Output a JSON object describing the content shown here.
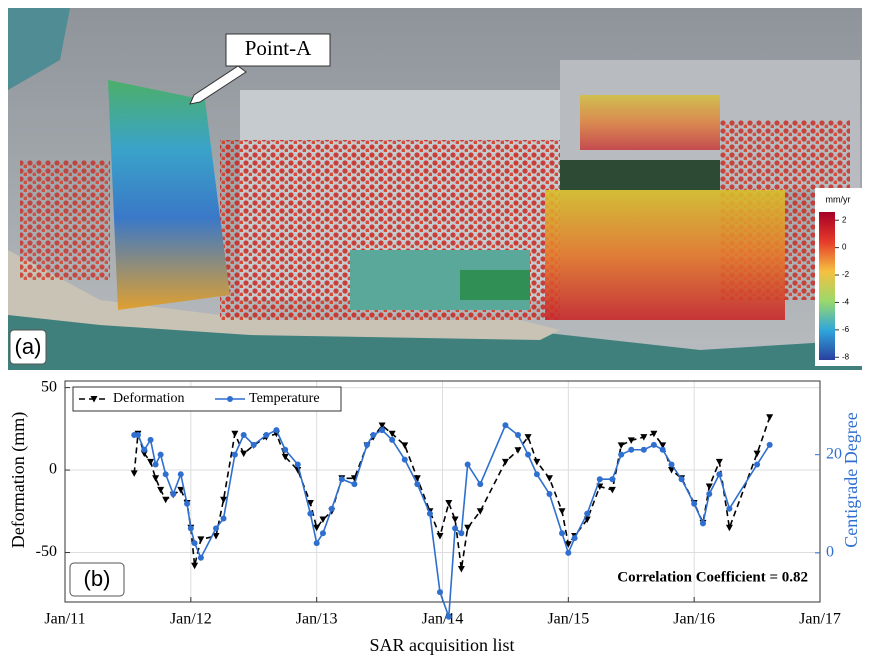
{
  "photo": {
    "pointer": "Point-A",
    "panel": "(a)",
    "colorbar": {
      "label": "mm/yr",
      "ticks": [
        2,
        0,
        -2,
        -4,
        -6,
        -8
      ],
      "lim": [
        2.6,
        -8.2
      ]
    }
  },
  "chart_data": {
    "type": "line",
    "panel": "(b)",
    "xlabel": "SAR acquisition list",
    "ylabel": "Deformation (mm)",
    "y2label": "Centigrade Degree",
    "annotation": "Correlation Coefficient = 0.82",
    "x": [
      2011.55,
      2011.58,
      2011.63,
      2011.68,
      2011.72,
      2011.76,
      2011.8,
      2011.86,
      2011.92,
      2011.97,
      2012.0,
      2012.03,
      2012.08,
      2012.2,
      2012.26,
      2012.35,
      2012.42,
      2012.5,
      2012.6,
      2012.68,
      2012.75,
      2012.85,
      2012.95,
      2013.0,
      2013.05,
      2013.12,
      2013.2,
      2013.3,
      2013.4,
      2013.45,
      2013.52,
      2013.6,
      2013.7,
      2013.8,
      2013.9,
      2013.98,
      2014.05,
      2014.1,
      2014.15,
      2014.2,
      2014.3,
      2014.5,
      2014.6,
      2014.68,
      2014.75,
      2014.85,
      2014.95,
      2015.0,
      2015.05,
      2015.15,
      2015.25,
      2015.35,
      2015.42,
      2015.5,
      2015.6,
      2015.68,
      2015.75,
      2015.82,
      2015.9,
      2016.0,
      2016.07,
      2016.12,
      2016.2,
      2016.28,
      2016.5,
      2016.6
    ],
    "series": [
      {
        "name": "Deformation",
        "color": "#000000",
        "values": [
          -2,
          22,
          10,
          5,
          -5,
          -12,
          -18,
          -15,
          -12,
          -20,
          -35,
          -58,
          -42,
          -40,
          -18,
          22,
          10,
          15,
          20,
          22,
          8,
          0,
          -20,
          -35,
          -30,
          -25,
          -5,
          -5,
          15,
          20,
          27,
          22,
          15,
          -5,
          -25,
          -40,
          -20,
          -30,
          -60,
          -35,
          -25,
          5,
          12,
          20,
          5,
          -5,
          -25,
          -45,
          -40,
          -30,
          -10,
          -12,
          15,
          18,
          20,
          22,
          15,
          0,
          -5,
          -20,
          -32,
          -10,
          5,
          -35,
          10,
          32
        ]
      },
      {
        "name": "Temperature",
        "color": "#2f6fcf",
        "axis": "y2",
        "values": [
          24,
          24,
          21,
          23,
          18,
          20,
          16,
          12,
          16,
          10,
          5,
          2,
          -1,
          5,
          7,
          20,
          24,
          22,
          24,
          25,
          21,
          18,
          8,
          2,
          4,
          9,
          15,
          14,
          22,
          24,
          25,
          23,
          19,
          14,
          8,
          -8,
          -13,
          5,
          4,
          18,
          14,
          26,
          24,
          20,
          16,
          12,
          4,
          0,
          3,
          8,
          15,
          15,
          20,
          21,
          21,
          22,
          21,
          18,
          15,
          10,
          6,
          12,
          16,
          9,
          18,
          22
        ]
      }
    ],
    "xlim": [
      2011,
      2017
    ],
    "xticks": [
      {
        "value": 2011,
        "label": "Jan/11"
      },
      {
        "value": 2012,
        "label": "Jan/12"
      },
      {
        "value": 2013,
        "label": "Jan/13"
      },
      {
        "value": 2014,
        "label": "Jan/14"
      },
      {
        "value": 2015,
        "label": "Jan/15"
      },
      {
        "value": 2016,
        "label": "Jan/16"
      },
      {
        "value": 2017,
        "label": "Jan/17"
      }
    ],
    "ylim": [
      -80,
      54
    ],
    "yticks": [
      -50,
      0,
      50
    ],
    "y2lim": [
      -10,
      35
    ],
    "y2ticks": [
      0,
      20
    ],
    "grid": true,
    "legend": "top-left"
  }
}
